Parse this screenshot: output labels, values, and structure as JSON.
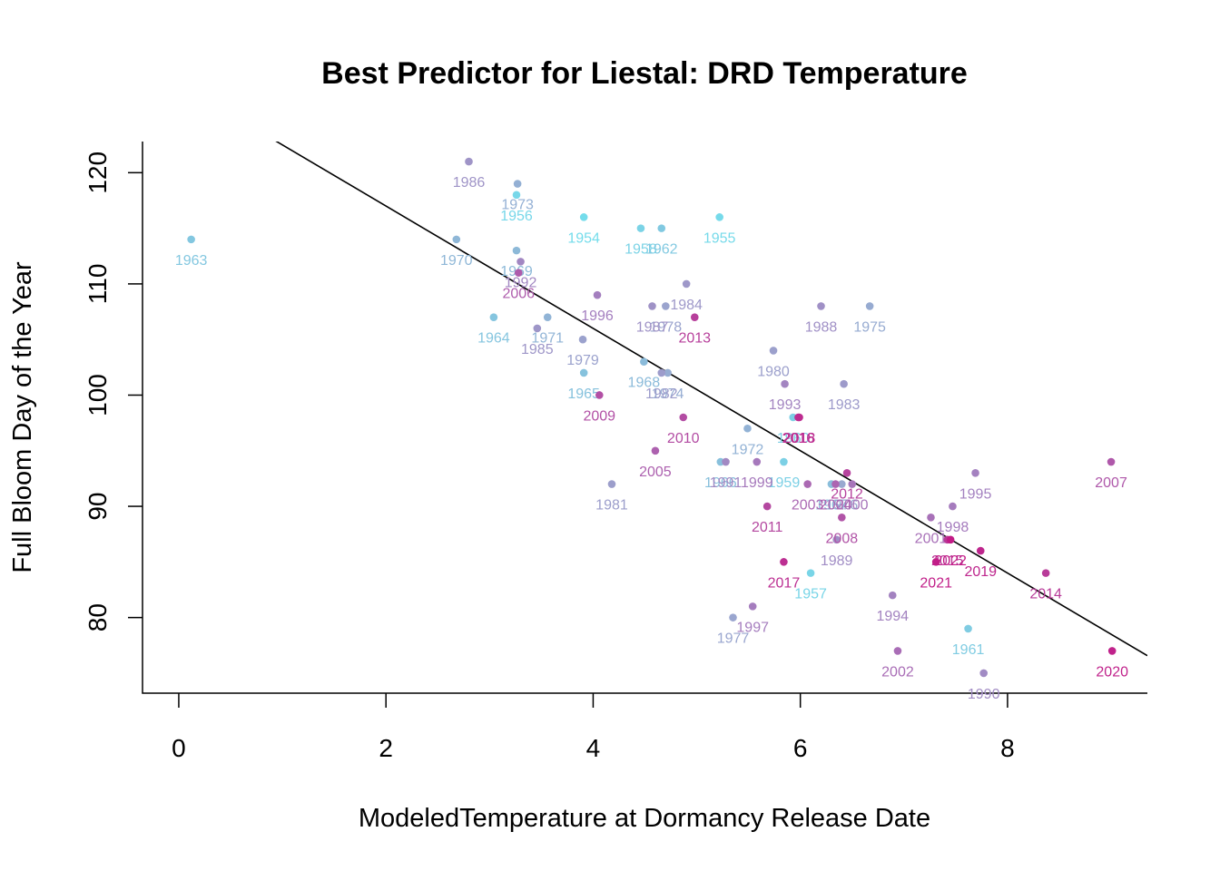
{
  "chart_data": {
    "type": "scatter",
    "title": "Best Predictor for Liestal: DRD Temperature",
    "xlabel": "ModeledTemperature at Dormancy Release Date",
    "ylabel": "Full Bloom Day of the Year",
    "xlim": [
      -0.35,
      9.35
    ],
    "ylim": [
      73.2,
      122.8
    ],
    "x_ticks": [
      0,
      2,
      4,
      6,
      8
    ],
    "y_ticks": [
      80,
      90,
      100,
      110,
      120
    ],
    "grid": false,
    "legend": "none",
    "regression_line": {
      "intercept": 128.0,
      "slope": -5.5
    },
    "color_scale": {
      "start_year": 1954,
      "end_year": 2022,
      "colors": [
        "#74dceb",
        "#9aa7cf",
        "#a678bc",
        "#c21a86"
      ]
    },
    "points": [
      {
        "year": "1954",
        "x": 3.91,
        "y": 116
      },
      {
        "year": "1955",
        "x": 5.22,
        "y": 116
      },
      {
        "year": "1956",
        "x": 3.26,
        "y": 118
      },
      {
        "year": "1957",
        "x": 6.1,
        "y": 84
      },
      {
        "year": "1958",
        "x": 4.46,
        "y": 115
      },
      {
        "year": "1959",
        "x": 5.84,
        "y": 94
      },
      {
        "year": "1960",
        "x": 5.93,
        "y": 98
      },
      {
        "year": "1961",
        "x": 7.62,
        "y": 79
      },
      {
        "year": "1962",
        "x": 4.66,
        "y": 115
      },
      {
        "year": "1963",
        "x": 0.12,
        "y": 114
      },
      {
        "year": "1964",
        "x": 3.04,
        "y": 107
      },
      {
        "year": "1965",
        "x": 3.91,
        "y": 102
      },
      {
        "year": "1966",
        "x": 5.23,
        "y": 94
      },
      {
        "year": "1967",
        "x": 6.3,
        "y": 92
      },
      {
        "year": "1968",
        "x": 4.49,
        "y": 103
      },
      {
        "year": "1969",
        "x": 3.26,
        "y": 113
      },
      {
        "year": "1970",
        "x": 2.68,
        "y": 114
      },
      {
        "year": "1971",
        "x": 3.56,
        "y": 107
      },
      {
        "year": "1972",
        "x": 5.49,
        "y": 97
      },
      {
        "year": "1973",
        "x": 3.27,
        "y": 119
      },
      {
        "year": "1974",
        "x": 4.72,
        "y": 102
      },
      {
        "year": "1975",
        "x": 6.67,
        "y": 108
      },
      {
        "year": "1976",
        "x": 6.4,
        "y": 92
      },
      {
        "year": "1977",
        "x": 5.35,
        "y": 80
      },
      {
        "year": "1978",
        "x": 4.7,
        "y": 108
      },
      {
        "year": "1979",
        "x": 3.9,
        "y": 105
      },
      {
        "year": "1980",
        "x": 5.74,
        "y": 104
      },
      {
        "year": "1981",
        "x": 4.18,
        "y": 92
      },
      {
        "year": "1982",
        "x": 4.66,
        "y": 102
      },
      {
        "year": "1983",
        "x": 6.42,
        "y": 101
      },
      {
        "year": "1984",
        "x": 4.9,
        "y": 110
      },
      {
        "year": "1985",
        "x": 3.46,
        "y": 106
      },
      {
        "year": "1986",
        "x": 2.8,
        "y": 121
      },
      {
        "year": "1987",
        "x": 4.57,
        "y": 108
      },
      {
        "year": "1988",
        "x": 6.2,
        "y": 108
      },
      {
        "year": "1989",
        "x": 6.35,
        "y": 87
      },
      {
        "year": "1990",
        "x": 7.77,
        "y": 75
      },
      {
        "year": "1991",
        "x": 5.28,
        "y": 94
      },
      {
        "year": "1992",
        "x": 3.3,
        "y": 112
      },
      {
        "year": "1993",
        "x": 5.85,
        "y": 101
      },
      {
        "year": "1994",
        "x": 6.89,
        "y": 82
      },
      {
        "year": "1995",
        "x": 7.69,
        "y": 93
      },
      {
        "year": "1996",
        "x": 4.04,
        "y": 109
      },
      {
        "year": "1997",
        "x": 5.54,
        "y": 81
      },
      {
        "year": "1998",
        "x": 7.47,
        "y": 90
      },
      {
        "year": "1999",
        "x": 5.58,
        "y": 94
      },
      {
        "year": "2000",
        "x": 6.5,
        "y": 92
      },
      {
        "year": "2001",
        "x": 7.26,
        "y": 89
      },
      {
        "year": "2002",
        "x": 6.94,
        "y": 77
      },
      {
        "year": "2003",
        "x": 6.07,
        "y": 92
      },
      {
        "year": "2004",
        "x": 6.34,
        "y": 92
      },
      {
        "year": "2005",
        "x": 4.6,
        "y": 95
      },
      {
        "year": "2006",
        "x": 3.28,
        "y": 111
      },
      {
        "year": "2007",
        "x": 9.0,
        "y": 94
      },
      {
        "year": "2008",
        "x": 6.4,
        "y": 89
      },
      {
        "year": "2009",
        "x": 4.06,
        "y": 100
      },
      {
        "year": "2010",
        "x": 4.87,
        "y": 98
      },
      {
        "year": "2011",
        "x": 5.68,
        "y": 90
      },
      {
        "year": "2012",
        "x": 6.45,
        "y": 93
      },
      {
        "year": "2013",
        "x": 4.98,
        "y": 107
      },
      {
        "year": "2014",
        "x": 8.37,
        "y": 84
      },
      {
        "year": "2015",
        "x": 7.42,
        "y": 87
      },
      {
        "year": "2016",
        "x": 5.98,
        "y": 98
      },
      {
        "year": "2017",
        "x": 5.84,
        "y": 85
      },
      {
        "year": "2018",
        "x": 5.99,
        "y": 98
      },
      {
        "year": "2019",
        "x": 7.74,
        "y": 86
      },
      {
        "year": "2020",
        "x": 9.01,
        "y": 77
      },
      {
        "year": "2021",
        "x": 7.31,
        "y": 85
      },
      {
        "year": "2022",
        "x": 7.45,
        "y": 87
      }
    ]
  }
}
